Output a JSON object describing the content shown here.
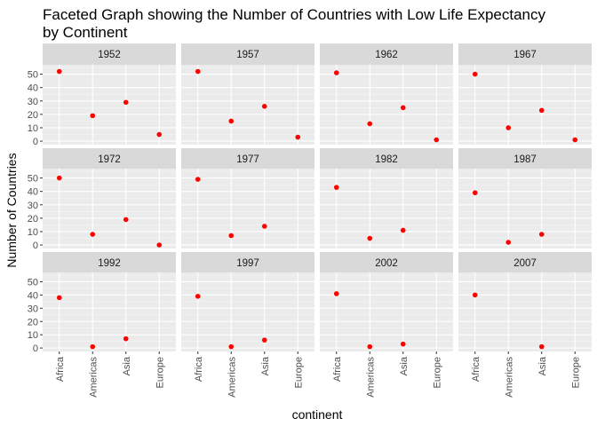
{
  "chart_data": {
    "type": "scatter",
    "title_lines": [
      "Faceted Graph showing the Number of Countries with Low Life Expectancy",
      "by Continent"
    ],
    "xlabel": "continent",
    "ylabel": "Number of Countries",
    "categories": [
      "Africa",
      "Americas",
      "Asia",
      "Europe"
    ],
    "y_ticks": [
      0,
      10,
      20,
      30,
      40,
      50
    ],
    "ylim": [
      -2.6,
      57
    ],
    "point_color": "#ff0000",
    "panel_color": "#ebebeb",
    "strip_color": "#d9d9d9",
    "facets": [
      {
        "label": "1952",
        "values": [
          52,
          19,
          29,
          5
        ]
      },
      {
        "label": "1957",
        "values": [
          52,
          15,
          26,
          3
        ]
      },
      {
        "label": "1962",
        "values": [
          51,
          13,
          25,
          1
        ]
      },
      {
        "label": "1967",
        "values": [
          50,
          10,
          23,
          1
        ]
      },
      {
        "label": "1972",
        "values": [
          50,
          8,
          19,
          0
        ]
      },
      {
        "label": "1977",
        "values": [
          49,
          7,
          14,
          null
        ]
      },
      {
        "label": "1982",
        "values": [
          43,
          5,
          11,
          null
        ]
      },
      {
        "label": "1987",
        "values": [
          39,
          2,
          8,
          null
        ]
      },
      {
        "label": "1992",
        "values": [
          38,
          1,
          7,
          null
        ]
      },
      {
        "label": "1997",
        "values": [
          39,
          1,
          6,
          null
        ]
      },
      {
        "label": "2002",
        "values": [
          41,
          1,
          3,
          null
        ]
      },
      {
        "label": "2007",
        "values": [
          40,
          null,
          1,
          null
        ]
      }
    ]
  }
}
